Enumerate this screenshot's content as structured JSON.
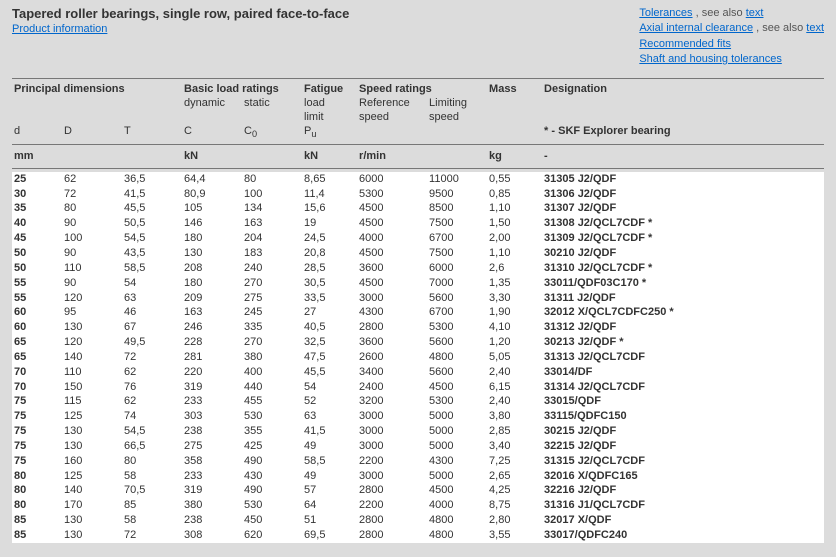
{
  "header": {
    "title": "Tapered roller bearings, single row, paired face-to-face",
    "product_info": "Product information",
    "right": {
      "l1a": "Tolerances",
      "l1b": " , see also ",
      "l1c": "text",
      "l2a": "Axial internal clearance",
      "l2b": " , see also ",
      "l2c": "text",
      "l3": "Recommended fits",
      "l4": "Shaft and housing tolerances"
    }
  },
  "groups": {
    "principal": "Principal dimensions",
    "load": "Basic load ratings",
    "load_dyn": "dynamic",
    "load_stat": "static",
    "fatigue1": "Fatigue",
    "fatigue2": "load",
    "fatigue3": "limit",
    "speed": "Speed ratings",
    "speed_ref1": "Reference",
    "speed_ref2": "speed",
    "speed_lim1": "Limiting",
    "speed_lim2": "speed",
    "mass": "Mass",
    "desig": "Designation",
    "explorer": "* - SKF Explorer bearing"
  },
  "sym": {
    "d": "d",
    "D": "D",
    "T": "T",
    "C": "C",
    "C0": "C",
    "C0sub": "0",
    "Pu": "P",
    "Pusub": "u"
  },
  "units": {
    "mm": "mm",
    "kN": "kN",
    "kN2": "kN",
    "rmin": "r/min",
    "kg": "kg",
    "dash": "-"
  },
  "rows": [
    {
      "d": "25",
      "D": "62",
      "T": "36,5",
      "C": "64,4",
      "C0": "80",
      "Pu": "8,65",
      "ref": "6000",
      "lim": "11000",
      "m": "0,55",
      "des": "31305 J2/QDF"
    },
    {
      "d": "30",
      "D": "72",
      "T": "41,5",
      "C": "80,9",
      "C0": "100",
      "Pu": "11,4",
      "ref": "5300",
      "lim": "9500",
      "m": "0,85",
      "des": "31306 J2/QDF"
    },
    {
      "d": "35",
      "D": "80",
      "T": "45,5",
      "C": "105",
      "C0": "134",
      "Pu": "15,6",
      "ref": "4500",
      "lim": "8500",
      "m": "1,10",
      "des": "31307 J2/QDF"
    },
    {
      "d": "40",
      "D": "90",
      "T": "50,5",
      "C": "146",
      "C0": "163",
      "Pu": "19",
      "ref": "4500",
      "lim": "7500",
      "m": "1,50",
      "des": "31308 J2/QCL7CDF *"
    },
    {
      "d": "45",
      "D": "100",
      "T": "54,5",
      "C": "180",
      "C0": "204",
      "Pu": "24,5",
      "ref": "4000",
      "lim": "6700",
      "m": "2,00",
      "des": "31309 J2/QCL7CDF *"
    },
    {
      "d": "50",
      "D": "90",
      "T": "43,5",
      "C": "130",
      "C0": "183",
      "Pu": "20,8",
      "ref": "4500",
      "lim": "7500",
      "m": "1,10",
      "des": "30210 J2/QDF"
    },
    {
      "d": "50",
      "D": "110",
      "T": "58,5",
      "C": "208",
      "C0": "240",
      "Pu": "28,5",
      "ref": "3600",
      "lim": "6000",
      "m": "2,6",
      "des": "31310 J2/QCL7CDF *"
    },
    {
      "d": "55",
      "D": "90",
      "T": "54",
      "C": "180",
      "C0": "270",
      "Pu": "30,5",
      "ref": "4500",
      "lim": "7000",
      "m": "1,35",
      "des": "33011/QDF03C170 *"
    },
    {
      "d": "55",
      "D": "120",
      "T": "63",
      "C": "209",
      "C0": "275",
      "Pu": "33,5",
      "ref": "3000",
      "lim": "5600",
      "m": "3,30",
      "des": "31311 J2/QDF"
    },
    {
      "d": "60",
      "D": "95",
      "T": "46",
      "C": "163",
      "C0": "245",
      "Pu": "27",
      "ref": "4300",
      "lim": "6700",
      "m": "1,90",
      "des": "32012 X/QCL7CDFC250 *"
    },
    {
      "d": "60",
      "D": "130",
      "T": "67",
      "C": "246",
      "C0": "335",
      "Pu": "40,5",
      "ref": "2800",
      "lim": "5300",
      "m": "4,10",
      "des": "31312 J2/QDF"
    },
    {
      "d": "65",
      "D": "120",
      "T": "49,5",
      "C": "228",
      "C0": "270",
      "Pu": "32,5",
      "ref": "3600",
      "lim": "5600",
      "m": "1,20",
      "des": "30213 J2/QDF *"
    },
    {
      "d": "65",
      "D": "140",
      "T": "72",
      "C": "281",
      "C0": "380",
      "Pu": "47,5",
      "ref": "2600",
      "lim": "4800",
      "m": "5,05",
      "des": "31313 J2/QCL7CDF"
    },
    {
      "d": "70",
      "D": "110",
      "T": "62",
      "C": "220",
      "C0": "400",
      "Pu": "45,5",
      "ref": "3400",
      "lim": "5600",
      "m": "2,40",
      "des": "33014/DF"
    },
    {
      "d": "70",
      "D": "150",
      "T": "76",
      "C": "319",
      "C0": "440",
      "Pu": "54",
      "ref": "2400",
      "lim": "4500",
      "m": "6,15",
      "des": "31314 J2/QCL7CDF"
    },
    {
      "d": "75",
      "D": "115",
      "T": "62",
      "C": "233",
      "C0": "455",
      "Pu": "52",
      "ref": "3200",
      "lim": "5300",
      "m": "2,40",
      "des": "33015/QDF"
    },
    {
      "d": "75",
      "D": "125",
      "T": "74",
      "C": "303",
      "C0": "530",
      "Pu": "63",
      "ref": "3000",
      "lim": "5000",
      "m": "3,80",
      "des": "33115/QDFC150"
    },
    {
      "d": "75",
      "D": "130",
      "T": "54,5",
      "C": "238",
      "C0": "355",
      "Pu": "41,5",
      "ref": "3000",
      "lim": "5000",
      "m": "2,85",
      "des": "30215 J2/QDF"
    },
    {
      "d": "75",
      "D": "130",
      "T": "66,5",
      "C": "275",
      "C0": "425",
      "Pu": "49",
      "ref": "3000",
      "lim": "5000",
      "m": "3,40",
      "des": "32215 J2/QDF"
    },
    {
      "d": "75",
      "D": "160",
      "T": "80",
      "C": "358",
      "C0": "490",
      "Pu": "58,5",
      "ref": "2200",
      "lim": "4300",
      "m": "7,25",
      "des": "31315 J2/QCL7CDF"
    },
    {
      "d": "80",
      "D": "125",
      "T": "58",
      "C": "233",
      "C0": "430",
      "Pu": "49",
      "ref": "3000",
      "lim": "5000",
      "m": "2,65",
      "des": "32016 X/QDFC165"
    },
    {
      "d": "80",
      "D": "140",
      "T": "70,5",
      "C": "319",
      "C0": "490",
      "Pu": "57",
      "ref": "2800",
      "lim": "4500",
      "m": "4,25",
      "des": "32216 J2/QDF"
    },
    {
      "d": "80",
      "D": "170",
      "T": "85",
      "C": "380",
      "C0": "530",
      "Pu": "64",
      "ref": "2200",
      "lim": "4000",
      "m": "8,75",
      "des": "31316 J1/QCL7CDF"
    },
    {
      "d": "85",
      "D": "130",
      "T": "58",
      "C": "238",
      "C0": "450",
      "Pu": "51",
      "ref": "2800",
      "lim": "4800",
      "m": "2,80",
      "des": "32017 X/QDF"
    },
    {
      "d": "85",
      "D": "130",
      "T": "72",
      "C": "308",
      "C0": "620",
      "Pu": "69,5",
      "ref": "2800",
      "lim": "4800",
      "m": "3,55",
      "des": "33017/QDFC240"
    }
  ]
}
